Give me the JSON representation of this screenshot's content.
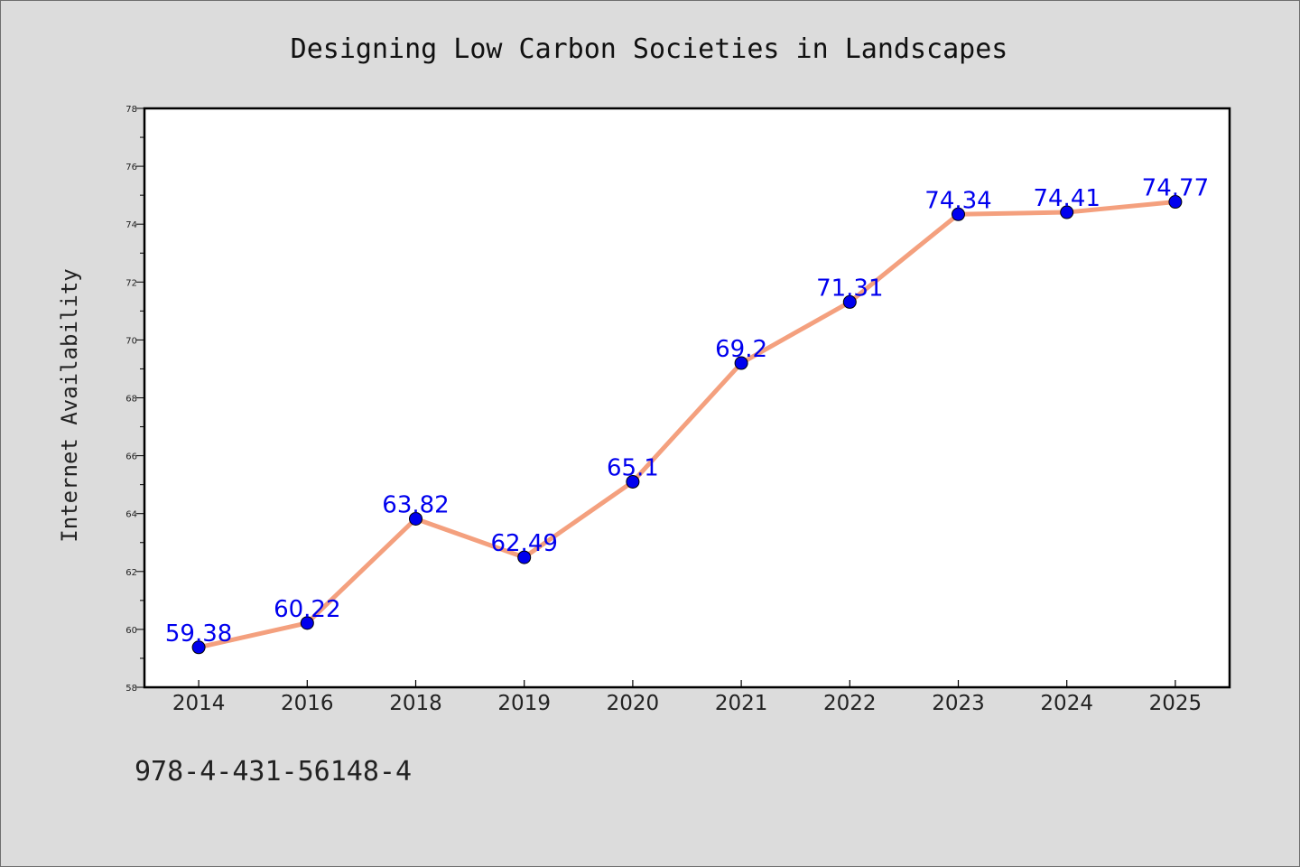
{
  "chart_data": {
    "type": "line",
    "title": "Designing Low Carbon Societies in Landscapes",
    "xlabel": "",
    "ylabel": "Internet Availability",
    "categories": [
      "2014",
      "2016",
      "2018",
      "2019",
      "2020",
      "2021",
      "2022",
      "2023",
      "2024",
      "2025"
    ],
    "series": [
      {
        "values": [
          59.38,
          60.22,
          63.82,
          62.49,
          65.1,
          69.2,
          71.31,
          74.34,
          74.41,
          74.77
        ],
        "labels": [
          "59.38",
          "60.22",
          "63.82",
          "62.49",
          "65.1",
          "69.2",
          "71.31",
          "74.34",
          "74.41",
          "74.77"
        ]
      }
    ],
    "ylim": [
      58,
      78
    ],
    "yticks": [
      "58",
      "60",
      "62",
      "64",
      "66",
      "68",
      "70",
      "72",
      "74",
      "76",
      "78"
    ],
    "grid": false,
    "colors": {
      "line": "#f4a07e",
      "marker": "#0000ee",
      "label": "#0000ee"
    }
  },
  "footer": {
    "isbn": "978-4-431-56148-4"
  }
}
